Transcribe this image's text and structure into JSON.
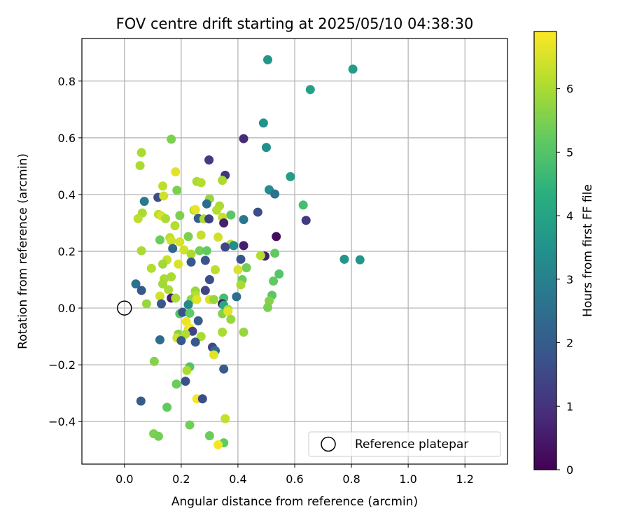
{
  "chart_data": {
    "type": "scatter",
    "title": "FOV centre drift starting at 2025/05/10 04:38:30",
    "xlabel": "Angular distance from reference (arcmin)",
    "ylabel": "Rotation from reference (arcmin)",
    "xlim": [
      -0.15,
      1.35
    ],
    "ylim": [
      -0.55,
      0.95
    ],
    "xticks": [
      0.0,
      0.2,
      0.4,
      0.6,
      0.8,
      1.0,
      1.2
    ],
    "xtick_labels": [
      "0.0",
      "0.2",
      "0.4",
      "0.6",
      "0.8",
      "1.0",
      "1.2"
    ],
    "yticks": [
      -0.4,
      -0.2,
      0.0,
      0.2,
      0.4,
      0.6,
      0.8
    ],
    "ytick_labels": [
      "−0.4",
      "−0.2",
      "0.0",
      "0.2",
      "0.4",
      "0.6",
      "0.8"
    ],
    "grid": true,
    "colorbar": {
      "label": "Hours from first FF file",
      "min": 0,
      "max": 6.9,
      "ticks": [
        0,
        1,
        2,
        3,
        4,
        5,
        6
      ],
      "tick_labels": [
        "0",
        "1",
        "2",
        "3",
        "4",
        "5",
        "6"
      ],
      "colormap": "viridis"
    },
    "legend": {
      "position": "lower right",
      "entries": [
        {
          "label": "Reference platepar",
          "marker": "open-circle"
        }
      ]
    },
    "reference_point": {
      "x": 0.0,
      "y": 0.0
    },
    "points": [
      {
        "x": 0.505,
        "y": 0.875,
        "h": 3.6
      },
      {
        "x": 0.805,
        "y": 0.842,
        "h": 3.8
      },
      {
        "x": 0.655,
        "y": 0.77,
        "h": 3.9
      },
      {
        "x": 0.49,
        "y": 0.652,
        "h": 3.5
      },
      {
        "x": 0.42,
        "y": 0.597,
        "h": 0.8
      },
      {
        "x": 0.165,
        "y": 0.595,
        "h": 5.5
      },
      {
        "x": 0.5,
        "y": 0.566,
        "h": 3.4
      },
      {
        "x": 0.06,
        "y": 0.548,
        "h": 6.0
      },
      {
        "x": 0.298,
        "y": 0.522,
        "h": 1.2
      },
      {
        "x": 0.055,
        "y": 0.502,
        "h": 6.0
      },
      {
        "x": 0.18,
        "y": 0.48,
        "h": 6.6
      },
      {
        "x": 0.355,
        "y": 0.468,
        "h": 1.0
      },
      {
        "x": 0.585,
        "y": 0.463,
        "h": 3.8
      },
      {
        "x": 0.255,
        "y": 0.446,
        "h": 6.0
      },
      {
        "x": 0.27,
        "y": 0.442,
        "h": 6.1
      },
      {
        "x": 0.345,
        "y": 0.45,
        "h": 6.0
      },
      {
        "x": 0.135,
        "y": 0.43,
        "h": 6.2
      },
      {
        "x": 0.51,
        "y": 0.417,
        "h": 3.3
      },
      {
        "x": 0.185,
        "y": 0.415,
        "h": 5.5
      },
      {
        "x": 0.53,
        "y": 0.402,
        "h": 2.6
      },
      {
        "x": 0.118,
        "y": 0.39,
        "h": 1.6
      },
      {
        "x": 0.138,
        "y": 0.395,
        "h": 6.4
      },
      {
        "x": 0.3,
        "y": 0.385,
        "h": 5.8
      },
      {
        "x": 0.07,
        "y": 0.376,
        "h": 2.8
      },
      {
        "x": 0.29,
        "y": 0.367,
        "h": 2.4
      },
      {
        "x": 0.63,
        "y": 0.363,
        "h": 4.8
      },
      {
        "x": 0.335,
        "y": 0.36,
        "h": 6.0
      },
      {
        "x": 0.245,
        "y": 0.345,
        "h": 6.0
      },
      {
        "x": 0.25,
        "y": 0.347,
        "h": 6.7
      },
      {
        "x": 0.325,
        "y": 0.345,
        "h": 6.1
      },
      {
        "x": 0.47,
        "y": 0.338,
        "h": 1.6
      },
      {
        "x": 0.063,
        "y": 0.335,
        "h": 6.0
      },
      {
        "x": 0.12,
        "y": 0.33,
        "h": 6.2
      },
      {
        "x": 0.195,
        "y": 0.326,
        "h": 5.5
      },
      {
        "x": 0.13,
        "y": 0.325,
        "h": 6.5
      },
      {
        "x": 0.375,
        "y": 0.328,
        "h": 5.1
      },
      {
        "x": 0.345,
        "y": 0.32,
        "h": 6.3
      },
      {
        "x": 0.26,
        "y": 0.316,
        "h": 2.0
      },
      {
        "x": 0.28,
        "y": 0.314,
        "h": 6.0
      },
      {
        "x": 0.298,
        "y": 0.314,
        "h": 1.3
      },
      {
        "x": 0.42,
        "y": 0.312,
        "h": 2.7
      },
      {
        "x": 0.048,
        "y": 0.315,
        "h": 6.2
      },
      {
        "x": 0.145,
        "y": 0.315,
        "h": 6.0
      },
      {
        "x": 0.64,
        "y": 0.309,
        "h": 1.2
      },
      {
        "x": 0.35,
        "y": 0.3,
        "h": 0.6
      },
      {
        "x": 0.178,
        "y": 0.29,
        "h": 6.1
      },
      {
        "x": 0.27,
        "y": 0.257,
        "h": 6.3
      },
      {
        "x": 0.225,
        "y": 0.252,
        "h": 5.5
      },
      {
        "x": 0.33,
        "y": 0.25,
        "h": 6.4
      },
      {
        "x": 0.535,
        "y": 0.252,
        "h": 0.2
      },
      {
        "x": 0.16,
        "y": 0.248,
        "h": 6.2
      },
      {
        "x": 0.125,
        "y": 0.24,
        "h": 5.3
      },
      {
        "x": 0.165,
        "y": 0.237,
        "h": 6.4
      },
      {
        "x": 0.195,
        "y": 0.233,
        "h": 6.5
      },
      {
        "x": 0.375,
        "y": 0.225,
        "h": 6.2
      },
      {
        "x": 0.42,
        "y": 0.22,
        "h": 0.6
      },
      {
        "x": 0.355,
        "y": 0.215,
        "h": 1.5
      },
      {
        "x": 0.385,
        "y": 0.22,
        "h": 3.3
      },
      {
        "x": 0.17,
        "y": 0.21,
        "h": 2.3
      },
      {
        "x": 0.21,
        "y": 0.205,
        "h": 6.4
      },
      {
        "x": 0.06,
        "y": 0.202,
        "h": 6.0
      },
      {
        "x": 0.265,
        "y": 0.202,
        "h": 5.4
      },
      {
        "x": 0.29,
        "y": 0.202,
        "h": 5.2
      },
      {
        "x": 0.235,
        "y": 0.19,
        "h": 6.0
      },
      {
        "x": 0.53,
        "y": 0.193,
        "h": 5.2
      },
      {
        "x": 0.495,
        "y": 0.183,
        "h": 0.6
      },
      {
        "x": 0.48,
        "y": 0.185,
        "h": 6.1
      },
      {
        "x": 0.775,
        "y": 0.172,
        "h": 3.6
      },
      {
        "x": 0.83,
        "y": 0.17,
        "h": 3.6
      },
      {
        "x": 0.41,
        "y": 0.172,
        "h": 1.8
      },
      {
        "x": 0.15,
        "y": 0.17,
        "h": 6.3
      },
      {
        "x": 0.285,
        "y": 0.168,
        "h": 1.8
      },
      {
        "x": 0.235,
        "y": 0.162,
        "h": 1.9
      },
      {
        "x": 0.135,
        "y": 0.155,
        "h": 5.9
      },
      {
        "x": 0.19,
        "y": 0.155,
        "h": 6.5
      },
      {
        "x": 0.43,
        "y": 0.142,
        "h": 5.4
      },
      {
        "x": 0.095,
        "y": 0.14,
        "h": 6.1
      },
      {
        "x": 0.32,
        "y": 0.135,
        "h": 6.2
      },
      {
        "x": 0.4,
        "y": 0.135,
        "h": 6.5
      },
      {
        "x": 0.545,
        "y": 0.12,
        "h": 5.0
      },
      {
        "x": 0.165,
        "y": 0.11,
        "h": 6.0
      },
      {
        "x": 0.14,
        "y": 0.103,
        "h": 6.0
      },
      {
        "x": 0.3,
        "y": 0.1,
        "h": 1.6
      },
      {
        "x": 0.415,
        "y": 0.1,
        "h": 5.3
      },
      {
        "x": 0.525,
        "y": 0.095,
        "h": 5.2
      },
      {
        "x": 0.04,
        "y": 0.085,
        "h": 2.6
      },
      {
        "x": 0.135,
        "y": 0.085,
        "h": 5.9
      },
      {
        "x": 0.41,
        "y": 0.082,
        "h": 6.0
      },
      {
        "x": 0.155,
        "y": 0.065,
        "h": 6.0
      },
      {
        "x": 0.06,
        "y": 0.062,
        "h": 1.9
      },
      {
        "x": 0.25,
        "y": 0.06,
        "h": 5.8
      },
      {
        "x": 0.285,
        "y": 0.062,
        "h": 1.4
      },
      {
        "x": 0.25,
        "y": 0.045,
        "h": 6.1
      },
      {
        "x": 0.52,
        "y": 0.045,
        "h": 5.1
      },
      {
        "x": 0.125,
        "y": 0.042,
        "h": 6.4
      },
      {
        "x": 0.395,
        "y": 0.04,
        "h": 2.5
      },
      {
        "x": 0.35,
        "y": 0.035,
        "h": 4.8
      },
      {
        "x": 0.165,
        "y": 0.035,
        "h": 0.6
      },
      {
        "x": 0.18,
        "y": 0.035,
        "h": 6.0
      },
      {
        "x": 0.235,
        "y": 0.03,
        "h": 5.7
      },
      {
        "x": 0.255,
        "y": 0.03,
        "h": 6.6
      },
      {
        "x": 0.3,
        "y": 0.03,
        "h": 6.5
      },
      {
        "x": 0.315,
        "y": 0.03,
        "h": 5.8
      },
      {
        "x": 0.51,
        "y": 0.025,
        "h": 5.6
      },
      {
        "x": 0.078,
        "y": 0.015,
        "h": 5.8
      },
      {
        "x": 0.13,
        "y": 0.015,
        "h": 1.9
      },
      {
        "x": 0.225,
        "y": 0.012,
        "h": 3.2
      },
      {
        "x": 0.345,
        "y": 0.015,
        "h": 0.3
      },
      {
        "x": 0.35,
        "y": 0.01,
        "h": 4.2
      },
      {
        "x": 0.505,
        "y": 0.002,
        "h": 5.5
      },
      {
        "x": 0.365,
        "y": -0.005,
        "h": 5.9
      },
      {
        "x": 0.195,
        "y": -0.02,
        "h": 5.0
      },
      {
        "x": 0.205,
        "y": -0.015,
        "h": 1.7
      },
      {
        "x": 0.23,
        "y": -0.018,
        "h": 5.2
      },
      {
        "x": 0.345,
        "y": -0.02,
        "h": 5.6
      },
      {
        "x": 0.365,
        "y": -0.012,
        "h": 6.6
      },
      {
        "x": 0.375,
        "y": -0.04,
        "h": 5.8
      },
      {
        "x": 0.26,
        "y": -0.045,
        "h": 2.0
      },
      {
        "x": 0.218,
        "y": -0.048,
        "h": 6.7
      },
      {
        "x": 0.225,
        "y": -0.075,
        "h": 6.5
      },
      {
        "x": 0.23,
        "y": -0.07,
        "h": 6.8
      },
      {
        "x": 0.24,
        "y": -0.082,
        "h": 1.4
      },
      {
        "x": 0.345,
        "y": -0.085,
        "h": 6.0
      },
      {
        "x": 0.42,
        "y": -0.085,
        "h": 5.8
      },
      {
        "x": 0.19,
        "y": -0.092,
        "h": 5.6
      },
      {
        "x": 0.215,
        "y": -0.092,
        "h": 6.1
      },
      {
        "x": 0.27,
        "y": -0.1,
        "h": 6.0
      },
      {
        "x": 0.185,
        "y": -0.105,
        "h": 6.4
      },
      {
        "x": 0.125,
        "y": -0.112,
        "h": 2.4
      },
      {
        "x": 0.2,
        "y": -0.11,
        "h": 6.0
      },
      {
        "x": 0.2,
        "y": -0.115,
        "h": 1.9
      },
      {
        "x": 0.25,
        "y": -0.12,
        "h": 1.9
      },
      {
        "x": 0.31,
        "y": -0.138,
        "h": 1.5
      },
      {
        "x": 0.32,
        "y": -0.15,
        "h": 2.5
      },
      {
        "x": 0.315,
        "y": -0.165,
        "h": 6.6
      },
      {
        "x": 0.105,
        "y": -0.188,
        "h": 5.6
      },
      {
        "x": 0.23,
        "y": -0.207,
        "h": 5.0
      },
      {
        "x": 0.35,
        "y": -0.215,
        "h": 2.0
      },
      {
        "x": 0.22,
        "y": -0.22,
        "h": 6.0
      },
      {
        "x": 0.215,
        "y": -0.258,
        "h": 1.7
      },
      {
        "x": 0.183,
        "y": -0.268,
        "h": 5.3
      },
      {
        "x": 0.255,
        "y": -0.32,
        "h": 6.8
      },
      {
        "x": 0.275,
        "y": -0.32,
        "h": 1.6
      },
      {
        "x": 0.058,
        "y": -0.328,
        "h": 2.0
      },
      {
        "x": 0.15,
        "y": -0.35,
        "h": 5.2
      },
      {
        "x": 0.355,
        "y": -0.39,
        "h": 6.3
      },
      {
        "x": 0.23,
        "y": -0.412,
        "h": 5.4
      },
      {
        "x": 0.103,
        "y": -0.443,
        "h": 5.5
      },
      {
        "x": 0.12,
        "y": -0.452,
        "h": 5.4
      },
      {
        "x": 0.3,
        "y": -0.45,
        "h": 5.3
      },
      {
        "x": 0.35,
        "y": -0.475,
        "h": 5.2
      },
      {
        "x": 0.33,
        "y": -0.482,
        "h": 6.8
      }
    ]
  }
}
